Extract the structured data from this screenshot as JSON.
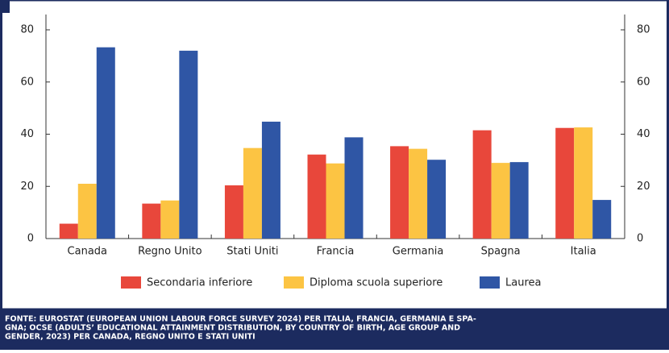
{
  "chart_data": {
    "type": "bar",
    "categories": [
      "Canada",
      "Regno Unito",
      "Stati Uniti",
      "Francia",
      "Germania",
      "Spagna",
      "Italia"
    ],
    "series": [
      {
        "name": "Secondaria inferiore",
        "color": "#e8473b",
        "values": [
          5.7,
          13.4,
          20.4,
          32.2,
          35.4,
          41.5,
          42.4
        ]
      },
      {
        "name": "Diploma scuola superiore",
        "color": "#fcc443",
        "values": [
          21,
          14.6,
          34.7,
          28.8,
          34.4,
          29,
          42.6
        ]
      },
      {
        "name": "Laurea",
        "color": "#2f56a5",
        "values": [
          73.3,
          72,
          44.8,
          38.8,
          30.2,
          29.3,
          14.8
        ]
      }
    ],
    "ylim": [
      0,
      80
    ],
    "yticks": [
      0,
      20,
      40,
      60,
      80
    ],
    "y2lim": [
      0,
      80
    ],
    "y2ticks": [
      0,
      20,
      40,
      60,
      80
    ],
    "source": [
      "FONTE: EUROSTAT (EUROPEAN UNION LABOUR FORCE SURVEY 2024) PER ITALIA, FRANCIA, GERMANIA E SPA-",
      "GNA; OCSE (ADULTS’ EDUCATIONAL ATTAINMENT DISTRIBUTION, BY COUNTRY OF BIRTH, AGE GROUP AND",
      "GENDER, 2023) PER CANADA, REGNO UNITO E STATI UNITI"
    ]
  }
}
